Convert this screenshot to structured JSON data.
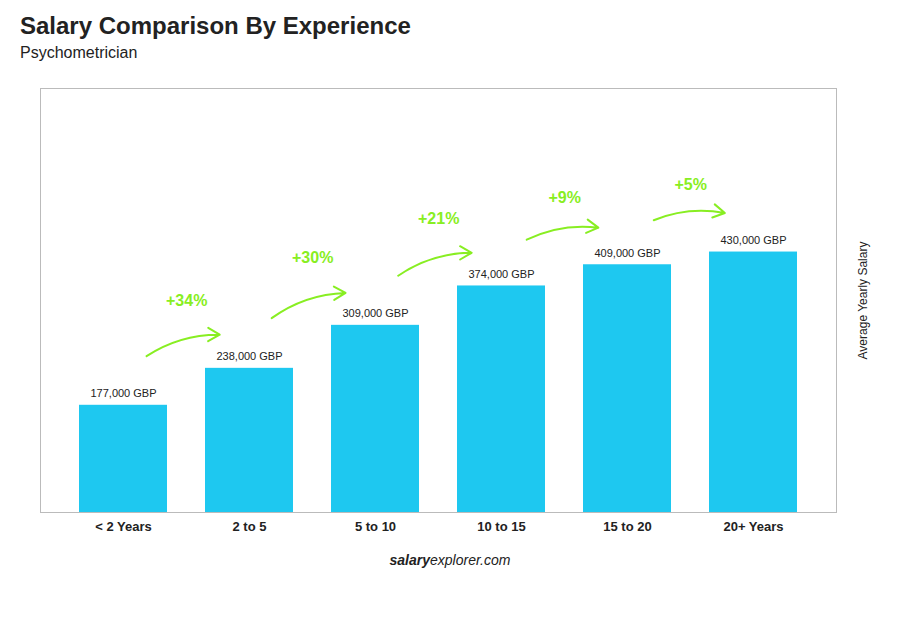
{
  "chart_data": {
    "type": "bar",
    "title": "Salary Comparison By Experience",
    "subtitle": "Psychometrician",
    "categories": [
      "< 2 Years",
      "2 to 5",
      "5 to 10",
      "10 to 15",
      "15 to 20",
      "20+ Years"
    ],
    "values": [
      177000,
      238000,
      309000,
      374000,
      409000,
      430000
    ],
    "value_labels": [
      "177,000 GBP",
      "238,000 GBP",
      "309,000 GBP",
      "374,000 GBP",
      "409,000 GBP",
      "430,000 GBP"
    ],
    "data_labels": true,
    "color": "#1ec8f0",
    "ylabel": "Average Yearly Salary",
    "ylim": [
      0,
      700000
    ],
    "yticks": [],
    "tick_labels": "x",
    "annotations": [
      {
        "text": "+34%",
        "color": "#88ee22"
      },
      {
        "text": "+30%",
        "color": "#88ee22"
      },
      {
        "text": "+21%",
        "color": "#88ee22"
      },
      {
        "text": "+9%",
        "color": "#88ee22"
      },
      {
        "text": "+5%",
        "color": "#88ee22"
      }
    ],
    "footer": [
      "salary",
      "explorer.com"
    ]
  }
}
